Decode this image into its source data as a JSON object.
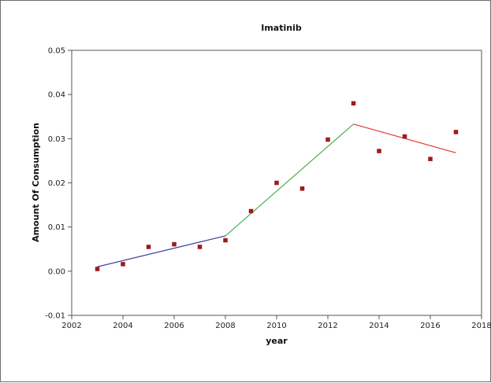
{
  "chart_data": {
    "type": "scatter",
    "title": "Imatinib",
    "xlabel": "year",
    "ylabel": "Amount Of Consumption",
    "xlim": [
      2002,
      2018
    ],
    "ylim": [
      -0.01,
      0.05
    ],
    "x_ticks": [
      2002,
      2004,
      2006,
      2008,
      2010,
      2012,
      2014,
      2016,
      2018
    ],
    "y_ticks": [
      "-0.01",
      "0.00",
      "0.01",
      "0.02",
      "0.03",
      "0.04",
      "0.05"
    ],
    "grid": false,
    "legend": "none",
    "points": {
      "color": "#9b1c1c",
      "x": [
        2003,
        2004,
        2005,
        2006,
        2007,
        2008,
        2009,
        2010,
        2011,
        2012,
        2013,
        2014,
        2015,
        2016,
        2017
      ],
      "y": [
        0.0005,
        0.0016,
        0.0055,
        0.0061,
        0.0055,
        0.007,
        0.0136,
        0.02,
        0.0187,
        0.0298,
        0.038,
        0.0272,
        0.0305,
        0.0254,
        0.0315
      ]
    },
    "fit_lines": [
      {
        "color": "#3b3b9e",
        "x": [
          2003,
          2008
        ],
        "y": [
          0.001,
          0.008
        ]
      },
      {
        "color": "#4caf50",
        "x": [
          2008,
          2013
        ],
        "y": [
          0.008,
          0.0333
        ]
      },
      {
        "color": "#e53935",
        "x": [
          2013,
          2017
        ],
        "y": [
          0.0333,
          0.0268
        ]
      }
    ]
  }
}
